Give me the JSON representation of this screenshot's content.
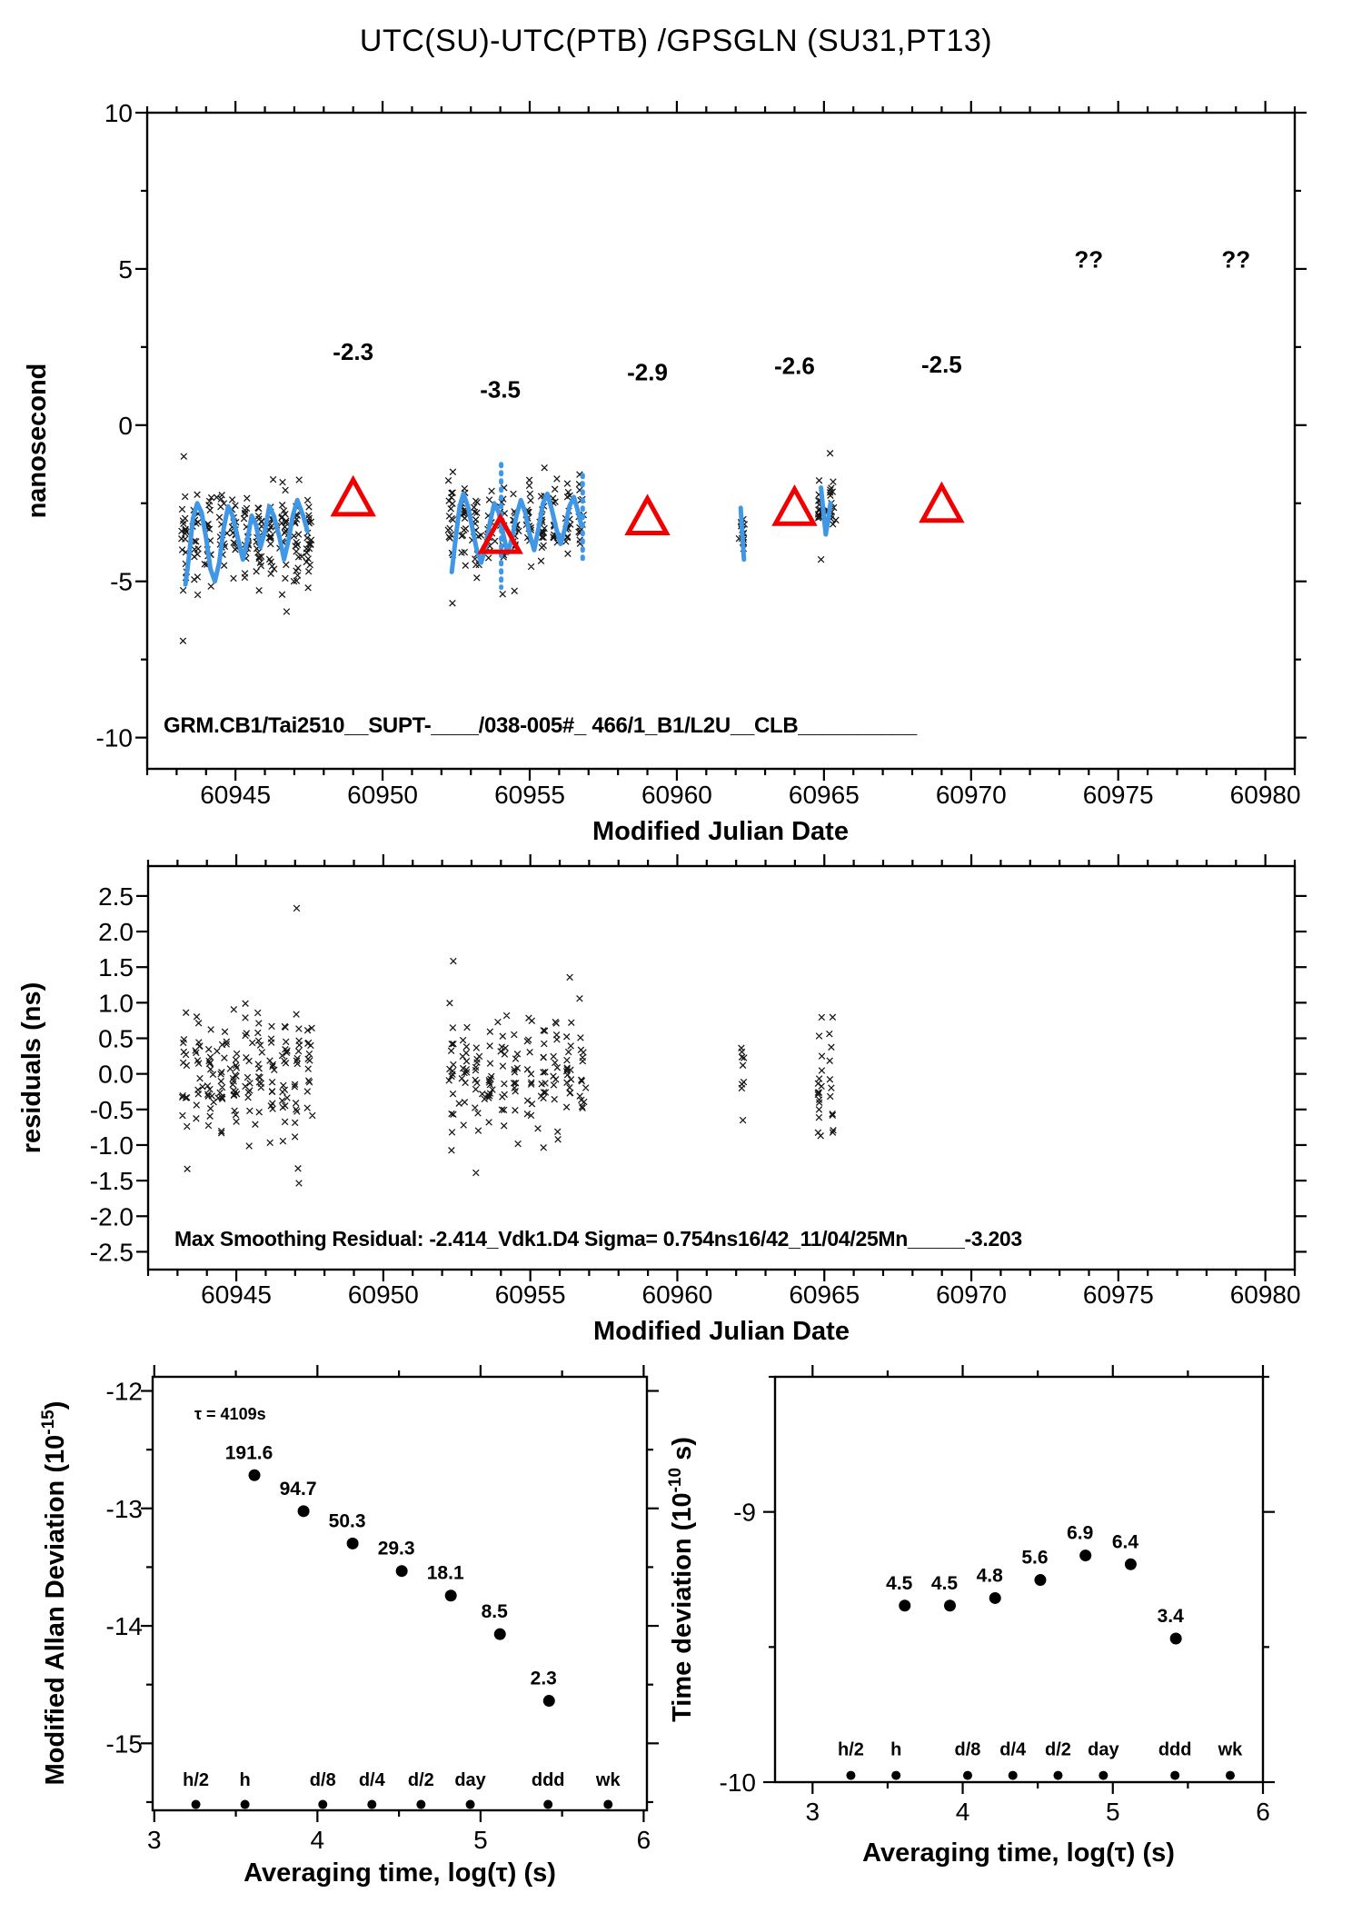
{
  "title": "UTC(SU)-UTC(PTB)  /GPSGLN  (SU31,PT13)",
  "colors": {
    "accent_red": "#f20000",
    "smooth_blue": "#4097e6",
    "scatter_black": "#161616",
    "axis_black": "#000000"
  },
  "chart_data": [
    {
      "id": "utc-difference",
      "type": "scatter",
      "ylabel": "nanosecond",
      "xlabel": "Modified Julian Date",
      "xlim": [
        60942,
        60981
      ],
      "ylim": [
        -11,
        10
      ],
      "xticks": [
        60945,
        60950,
        60955,
        60960,
        60965,
        60970,
        60975,
        60980
      ],
      "xtick_labels": [
        "60945",
        "60950",
        "60955",
        "60960",
        "60965",
        "60970",
        "60975",
        "60980"
      ],
      "yticks": [
        10,
        5,
        0,
        -5,
        -10
      ],
      "ytick_labels": [
        "10",
        "5",
        "0",
        "-5",
        "-10"
      ],
      "inner_label": "GRM.CB1/Tai2510__SUPT-____/038-005#_ 466/1_B1/L2U__CLB__________",
      "clusters": [
        {
          "x_start": 60943.25,
          "x_end": 60947.5,
          "columns": 11,
          "points_per_column": 19,
          "x_jitter": 0.09,
          "y_mean": -3.6,
          "y_spread": 1.25,
          "y_min": -7.1,
          "y_max": -1.0
        },
        {
          "x_start": 60952.3,
          "x_end": 60956.75,
          "columns": 11,
          "points_per_column": 17,
          "x_jitter": 0.09,
          "y_mean": -3.1,
          "y_spread": 1.05,
          "y_min": -5.7,
          "y_max": -0.3
        },
        {
          "x_start": 60962.15,
          "x_end": 60962.3,
          "columns": 1,
          "points_per_column": 14,
          "x_jitter": 0.05,
          "y_mean": -3.5,
          "y_spread": 0.5,
          "y_min": -4.5,
          "y_max": -2.6
        },
        {
          "x_start": 60964.85,
          "x_end": 60965.25,
          "columns": 2,
          "points_per_column": 15,
          "x_jitter": 0.07,
          "y_mean": -2.5,
          "y_spread": 0.75,
          "y_min": -4.3,
          "y_max": -0.9
        }
      ],
      "smooth_line": {
        "segments": [
          {
            "dashed": false,
            "points": [
              [
                60943.3,
                -5.1
              ],
              [
                60943.42,
                -4.2
              ],
              [
                60943.55,
                -3.0
              ],
              [
                60943.7,
                -2.5
              ],
              [
                60943.85,
                -2.8
              ],
              [
                60944.0,
                -3.6
              ],
              [
                60944.15,
                -4.6
              ],
              [
                60944.3,
                -5.0
              ],
              [
                60944.45,
                -4.4
              ],
              [
                60944.6,
                -3.3
              ],
              [
                60944.75,
                -2.6
              ],
              [
                60944.9,
                -2.9
              ],
              [
                60945.1,
                -3.7
              ],
              [
                60945.25,
                -4.3
              ],
              [
                60945.4,
                -3.7
              ],
              [
                60945.55,
                -2.9
              ],
              [
                60945.7,
                -3.2
              ],
              [
                60945.85,
                -3.9
              ],
              [
                60946.0,
                -3.4
              ],
              [
                60946.15,
                -2.6
              ],
              [
                60946.3,
                -2.9
              ],
              [
                60946.5,
                -3.6
              ],
              [
                60946.65,
                -4.3
              ],
              [
                60946.8,
                -3.7
              ],
              [
                60946.95,
                -2.9
              ],
              [
                60947.1,
                -2.4
              ],
              [
                60947.3,
                -2.9
              ],
              [
                60947.45,
                -3.4
              ]
            ]
          },
          {
            "dashed": true,
            "points": [
              [
                60954.03,
                -1.25
              ],
              [
                60954.03,
                -5.2
              ]
            ]
          },
          {
            "dashed": false,
            "points": [
              [
                60952.35,
                -4.7
              ],
              [
                60952.5,
                -3.5
              ],
              [
                60952.62,
                -2.6
              ],
              [
                60952.75,
                -2.2
              ],
              [
                60952.9,
                -2.6
              ],
              [
                60953.05,
                -3.3
              ],
              [
                60953.2,
                -4.0
              ],
              [
                60953.35,
                -4.4
              ],
              [
                60953.5,
                -3.9
              ],
              [
                60953.65,
                -3.1
              ],
              [
                60953.8,
                -2.5
              ],
              [
                60953.95,
                -2.8
              ],
              [
                60954.1,
                -3.5
              ],
              [
                60954.25,
                -4.1
              ],
              [
                60954.4,
                -3.6
              ],
              [
                60954.55,
                -2.9
              ],
              [
                60954.7,
                -2.4
              ],
              [
                60954.85,
                -2.8
              ],
              [
                60955.0,
                -3.5
              ],
              [
                60955.15,
                -4.0
              ],
              [
                60955.3,
                -3.3
              ],
              [
                60955.45,
                -2.5
              ],
              [
                60955.6,
                -2.2
              ],
              [
                60955.75,
                -2.7
              ],
              [
                60955.9,
                -3.3
              ],
              [
                60956.05,
                -3.8
              ],
              [
                60956.2,
                -3.3
              ],
              [
                60956.35,
                -2.6
              ],
              [
                60956.5,
                -2.3
              ],
              [
                60956.62,
                -2.7
              ],
              [
                60956.75,
                -3.2
              ]
            ]
          },
          {
            "dashed": true,
            "points": [
              [
                60956.8,
                -1.6
              ],
              [
                60956.8,
                -4.4
              ]
            ]
          },
          {
            "dashed": false,
            "points": [
              [
                60962.17,
                -2.65
              ],
              [
                60962.22,
                -3.4
              ],
              [
                60962.28,
                -4.3
              ]
            ]
          },
          {
            "dashed": false,
            "points": [
              [
                60964.9,
                -2.0
              ],
              [
                60964.98,
                -2.75
              ],
              [
                60965.06,
                -3.5
              ],
              [
                60965.16,
                -2.95
              ],
              [
                60965.22,
                -2.5
              ]
            ]
          }
        ]
      },
      "triangles": {
        "x": [
          60949,
          60954,
          60959,
          60964,
          60969
        ],
        "y": [
          -2.3,
          -3.5,
          -2.9,
          -2.6,
          -2.5
        ],
        "labels": [
          "-2.3",
          "-3.5",
          "-2.9",
          "-2.6",
          "-2.5"
        ],
        "label_y": [
          2.35,
          1.15,
          1.7,
          1.9,
          1.95
        ]
      },
      "unknown": {
        "x": [
          60974,
          60979
        ],
        "y": 5.3,
        "label": "??"
      }
    },
    {
      "id": "residuals",
      "type": "scatter",
      "ylabel": "residuals (ns)",
      "xlabel": "Modified Julian Date",
      "xlim": [
        60942,
        60981
      ],
      "ylim": [
        -2.75,
        2.92
      ],
      "xticks": [
        60945,
        60950,
        60955,
        60960,
        60965,
        60970,
        60975,
        60980
      ],
      "xtick_labels": [
        "60945",
        "60950",
        "60955",
        "60960",
        "60965",
        "60970",
        "60975",
        "60980"
      ],
      "yticks": [
        2.5,
        2.0,
        1.5,
        1.0,
        0.5,
        0.0,
        -0.5,
        -1.0,
        -1.5,
        -2.0,
        -2.5
      ],
      "ytick_labels": [
        "2.5",
        "2.0",
        "1.5",
        "1.0",
        "0.5",
        "0.0",
        "-0.5",
        "-1.0",
        "-1.5",
        "-2.0",
        "-2.5"
      ],
      "inner_label": "Max Smoothing Residual: -2.414_Vdk1.D4  Sigma= 0.754ns16/42_11/04/25Mn_____-3.203",
      "clusters": [
        {
          "x_start": 60943.25,
          "x_end": 60947.5,
          "columns": 11,
          "points_per_column": 17,
          "x_jitter": 0.09,
          "y_mean": 0.0,
          "y_spread": 0.8,
          "y_min": -2.15,
          "y_max": 2.45
        },
        {
          "x_start": 60952.3,
          "x_end": 60956.75,
          "columns": 11,
          "points_per_column": 15,
          "x_jitter": 0.09,
          "y_mean": -0.05,
          "y_spread": 0.75,
          "y_min": -1.95,
          "y_max": 1.95
        },
        {
          "x_start": 60962.15,
          "x_end": 60962.3,
          "columns": 1,
          "points_per_column": 12,
          "x_jitter": 0.05,
          "y_mean": 0.0,
          "y_spread": 0.4,
          "y_min": -0.65,
          "y_max": 0.65
        },
        {
          "x_start": 60964.85,
          "x_end": 60965.25,
          "columns": 2,
          "points_per_column": 14,
          "x_jitter": 0.07,
          "y_mean": -0.15,
          "y_spread": 0.65,
          "y_min": -1.7,
          "y_max": 1.15
        }
      ]
    },
    {
      "id": "modified-allan-deviation",
      "type": "scatter-dots",
      "ylabel_pre": "Modified Allan Deviation (10",
      "ylabel_sup": "-15",
      "ylabel_post": ")",
      "xlabel": "Averaging time, log(τ) (s)",
      "note": "τ = 4109s",
      "xlim": [
        2.99,
        6.02
      ],
      "ylim": [
        -15.57,
        -11.88
      ],
      "xticks": [
        3,
        4,
        5,
        6
      ],
      "xtick_labels": [
        "3",
        "4",
        "5",
        "6"
      ],
      "yticks": [
        -12,
        -13,
        -14,
        -15
      ],
      "ytick_labels": [
        "-12",
        "-13",
        "-14",
        "-15"
      ],
      "exponent": -15,
      "log_tau": [
        3.614,
        3.915,
        4.216,
        4.517,
        4.818,
        5.119,
        5.42
      ],
      "values": [
        191.6,
        94.7,
        50.3,
        29.3,
        18.1,
        8.5,
        2.3
      ],
      "value_labels": [
        "191.6",
        "94.7",
        "50.3",
        "29.3",
        "18.1",
        "8.5",
        "2.3"
      ],
      "tau_markers": {
        "x": [
          3.255,
          3.556,
          4.033,
          4.334,
          4.635,
          4.937,
          5.414,
          5.782
        ],
        "labels": [
          "h/2",
          "h",
          "d/8",
          "d/4",
          "d/2",
          "day",
          "ddd",
          "wk"
        ],
        "marker_y": -15.52,
        "label_y": -15.36
      }
    },
    {
      "id": "time-deviation",
      "type": "scatter-dots",
      "ylabel_pre": "Time deviation (10",
      "ylabel_sup": "-10",
      "ylabel_post": " s)",
      "xlabel": "Averaging time, log(τ) (s)",
      "xlim": [
        2.75,
        6.0
      ],
      "ylim": [
        -10.0,
        -8.5
      ],
      "xticks": [
        3,
        4,
        5,
        6
      ],
      "xtick_labels": [
        "3",
        "4",
        "5",
        "6"
      ],
      "yticks": [
        -9,
        -10
      ],
      "ytick_labels": [
        "-9",
        "-10"
      ],
      "exponent": -10,
      "log_tau": [
        3.614,
        3.915,
        4.216,
        4.517,
        4.818,
        5.119,
        5.42
      ],
      "values": [
        4.5,
        4.5,
        4.8,
        5.6,
        6.9,
        6.4,
        3.4
      ],
      "value_labels": [
        "4.5",
        "4.5",
        "4.8",
        "5.6",
        "6.9",
        "6.4",
        "3.4"
      ],
      "tau_markers": {
        "x": [
          3.255,
          3.556,
          4.033,
          4.334,
          4.635,
          4.937,
          5.414,
          5.782
        ],
        "labels": [
          "h/2",
          "h",
          "d/8",
          "d/4",
          "d/2",
          "day",
          "ddd",
          "wk"
        ],
        "marker_y": -9.975,
        "label_y": -9.9
      }
    }
  ]
}
